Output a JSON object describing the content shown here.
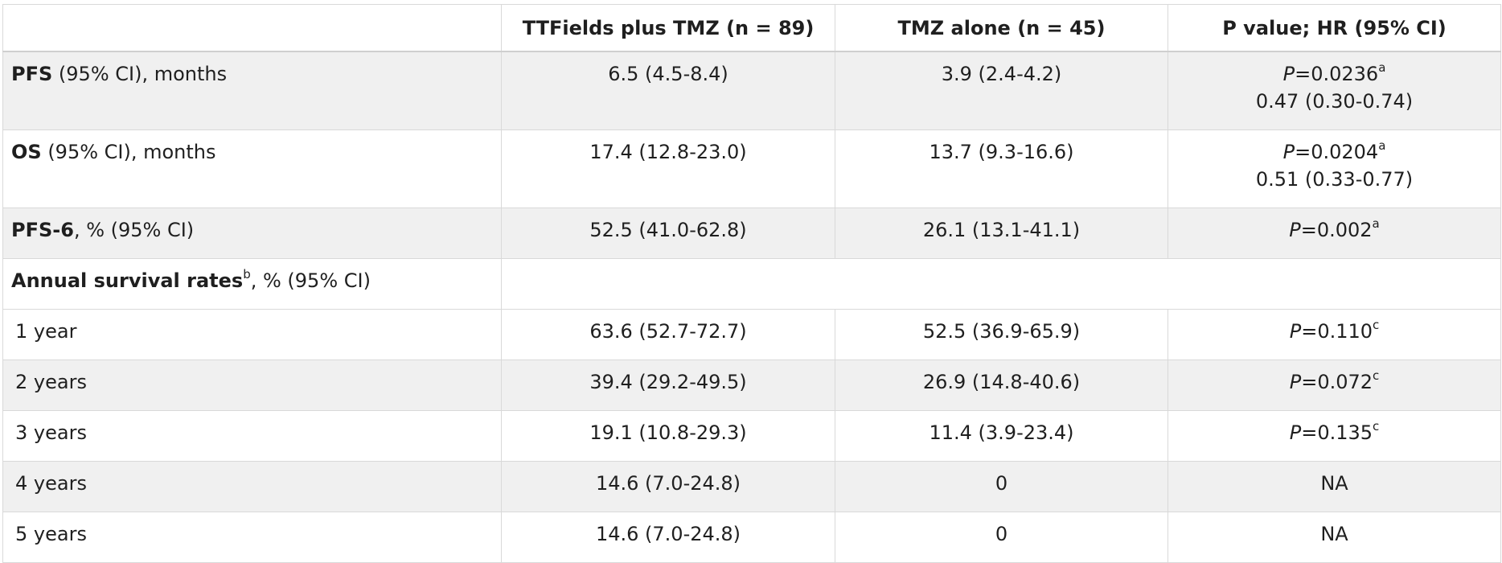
{
  "headers": [
    "",
    "TTFields plus TMZ (n = 89)",
    "TMZ alone (n = 45)",
    "P value; HR (95% CI)"
  ],
  "rows": [
    {
      "label_bold": "PFS",
      "label_rest": " (95% CI), months",
      "col1": "6.5 (4.5-8.4)",
      "col2": "3.9 (2.4-4.2)",
      "p_italic": "P",
      "p_value": "=0.0236",
      "p_sup": "a",
      "hr": "0.47 (0.30-0.74)"
    },
    {
      "label_bold": "OS",
      "label_rest": " (95% CI), months",
      "col1": "17.4 (12.8-23.0)",
      "col2": "13.7 (9.3-16.6)",
      "p_italic": "P",
      "p_value": "=0.0204",
      "p_sup": "a",
      "hr": "0.51 (0.33-0.77)"
    },
    {
      "label_bold": "PFS-6",
      "label_rest": ", % (95% CI)",
      "col1": "52.5 (41.0-62.8)",
      "col2": "26.1 (13.1-41.1)",
      "p_italic": "P",
      "p_value": "=0.002",
      "p_sup": "a"
    }
  ],
  "section": {
    "label": "Annual survival rates",
    "sup": "b",
    "rest": ", % (95% CI)"
  },
  "survival": [
    {
      "label": "1 year",
      "col1": "63.6 (52.7-72.7)",
      "col2": "52.5 (36.9-65.9)",
      "p_italic": "P",
      "p_value": "=0.110",
      "p_sup": "c"
    },
    {
      "label": "2 years",
      "col1": "39.4 (29.2-49.5)",
      "col2": "26.9 (14.8-40.6)",
      "p_italic": "P",
      "p_value": "=0.072",
      "p_sup": "c"
    },
    {
      "label": "3 years",
      "col1": "19.1 (10.8-29.3)",
      "col2": "11.4 (3.9-23.4)",
      "p_italic": "P",
      "p_value": "=0.135",
      "p_sup": "c"
    },
    {
      "label": "4 years",
      "col1": "14.6 (7.0-24.8)",
      "col2": "0",
      "p_text": "NA"
    },
    {
      "label": "5 years",
      "col1": "14.6 (7.0-24.8)",
      "col2": "0",
      "p_text": "NA"
    }
  ]
}
